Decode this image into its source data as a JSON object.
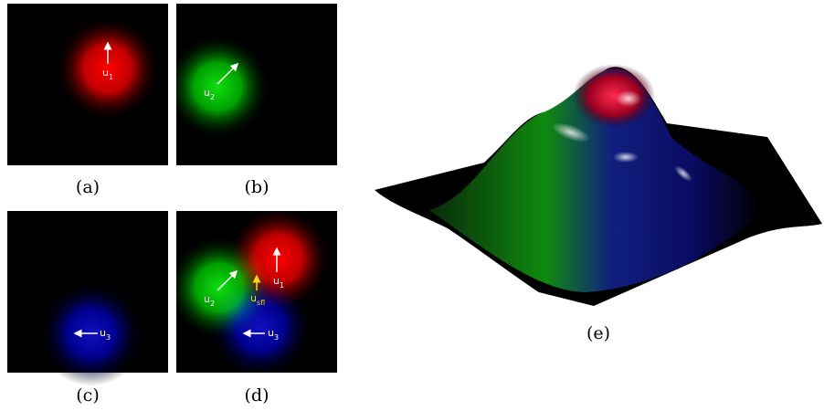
{
  "panels": [
    {
      "caption": "(a)",
      "vectors": [
        {
          "main": "u",
          "sub": "1"
        }
      ]
    },
    {
      "caption": "(b)",
      "vectors": [
        {
          "main": "u",
          "sub": "2"
        }
      ]
    },
    {
      "caption": "(c)",
      "vectors": [
        {
          "main": "u",
          "sub": "3"
        }
      ]
    },
    {
      "caption": "(d)",
      "vectors": [
        {
          "main": "u",
          "sub": "1"
        },
        {
          "main": "u",
          "sub": "2"
        },
        {
          "main": "u",
          "sub": "3"
        },
        {
          "main": "u",
          "sub": "sfl"
        }
      ]
    },
    {
      "caption": "(e)"
    }
  ]
}
